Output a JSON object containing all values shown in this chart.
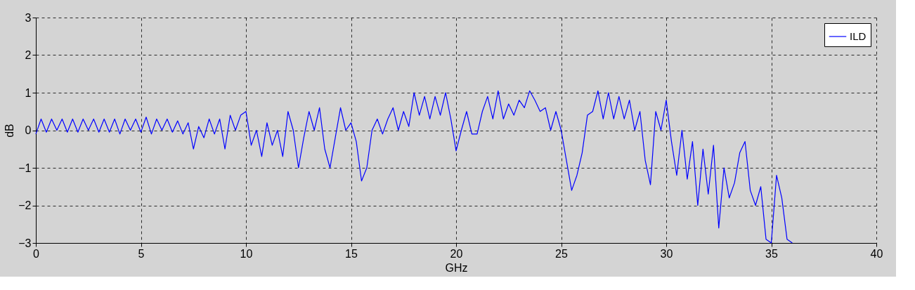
{
  "chart_data": {
    "type": "line",
    "xlabel": "GHz",
    "ylabel": "dB",
    "xlim": [
      0,
      40
    ],
    "xticks": [
      0,
      5,
      10,
      15,
      20,
      25,
      30,
      35,
      40
    ],
    "ylim": [
      -3,
      3
    ],
    "yticks": [
      -3,
      -2,
      -1,
      0,
      1,
      2,
      3
    ],
    "grid": true,
    "legend": "top right",
    "line_style": "solid",
    "marker": "none",
    "x": [
      0,
      0.25,
      0.5,
      0.75,
      1,
      1.25,
      1.5,
      1.75,
      2,
      2.25,
      2.5,
      2.75,
      3,
      3.25,
      3.5,
      3.75,
      4,
      4.25,
      4.5,
      4.75,
      5,
      5.25,
      5.5,
      5.75,
      6,
      6.25,
      6.5,
      6.75,
      7,
      7.25,
      7.5,
      7.75,
      8,
      8.25,
      8.5,
      8.75,
      9,
      9.25,
      9.5,
      9.75,
      10,
      10.25,
      10.5,
      10.75,
      11,
      11.25,
      11.5,
      11.75,
      12,
      12.25,
      12.5,
      12.75,
      13,
      13.25,
      13.5,
      13.75,
      14,
      14.25,
      14.5,
      14.75,
      15,
      15.25,
      15.5,
      15.75,
      16,
      16.25,
      16.5,
      16.75,
      17,
      17.25,
      17.5,
      17.75,
      18,
      18.25,
      18.5,
      18.75,
      19,
      19.25,
      19.5,
      19.75,
      20,
      20.25,
      20.5,
      20.75,
      21,
      21.25,
      21.5,
      21.75,
      22,
      22.25,
      22.5,
      22.75,
      23,
      23.25,
      23.5,
      23.75,
      24,
      24.25,
      24.5,
      24.75,
      25,
      25.25,
      25.5,
      25.75,
      26,
      26.25,
      26.5,
      26.75,
      27,
      27.25,
      27.5,
      27.75,
      28,
      28.25,
      28.5,
      28.75,
      29,
      29.25,
      29.5,
      29.75,
      30,
      30.25,
      30.5,
      30.75,
      31,
      31.25,
      31.5,
      31.75,
      32,
      32.25,
      32.5,
      32.75,
      33,
      33.25,
      33.5,
      33.75,
      34,
      34.25,
      34.5,
      34.75,
      35,
      35.25,
      35.5,
      35.75,
      36
    ],
    "series": [
      {
        "name": "ILD",
        "color": "#0000ff",
        "values": [
          -0.1,
          0.3,
          -0.05,
          0.3,
          0.0,
          0.3,
          -0.05,
          0.3,
          -0.05,
          0.3,
          0.0,
          0.3,
          -0.05,
          0.3,
          -0.05,
          0.3,
          -0.1,
          0.3,
          0.0,
          0.3,
          -0.05,
          0.35,
          -0.1,
          0.3,
          0.0,
          0.3,
          -0.05,
          0.25,
          -0.1,
          0.2,
          -0.5,
          0.1,
          -0.2,
          0.3,
          -0.1,
          0.3,
          -0.5,
          0.4,
          0.0,
          0.4,
          0.5,
          -0.4,
          0.0,
          -0.7,
          0.2,
          -0.4,
          0.0,
          -0.7,
          0.5,
          0.0,
          -1.0,
          -0.2,
          0.5,
          0.0,
          0.6,
          -0.5,
          -1.0,
          -0.2,
          0.6,
          0.0,
          0.2,
          -0.3,
          -1.35,
          -1.0,
          0.0,
          0.3,
          -0.1,
          0.3,
          0.6,
          0.0,
          0.5,
          0.1,
          1.0,
          0.4,
          0.9,
          0.3,
          0.9,
          0.4,
          1.0,
          0.3,
          -0.55,
          0.0,
          0.5,
          -0.1,
          -0.1,
          0.5,
          0.9,
          0.3,
          1.05,
          0.3,
          0.7,
          0.4,
          0.8,
          0.6,
          1.05,
          0.8,
          0.5,
          0.6,
          0.0,
          0.5,
          0.0,
          -0.8,
          -1.6,
          -1.2,
          -0.6,
          0.4,
          0.5,
          1.05,
          0.3,
          1.0,
          0.3,
          0.9,
          0.3,
          0.8,
          0.0,
          0.5,
          -0.8,
          -1.45,
          0.5,
          0.0,
          0.8,
          -0.3,
          -1.2,
          0.0,
          -1.3,
          -0.3,
          -2.0,
          -0.5,
          -1.7,
          -0.4,
          -2.6,
          -1.0,
          -1.8,
          -1.4,
          -0.6,
          -0.3,
          -1.6,
          -2.0,
          -1.5,
          -2.9,
          -3.0,
          -1.2,
          -1.8,
          -2.9,
          -3.0
        ]
      }
    ]
  }
}
